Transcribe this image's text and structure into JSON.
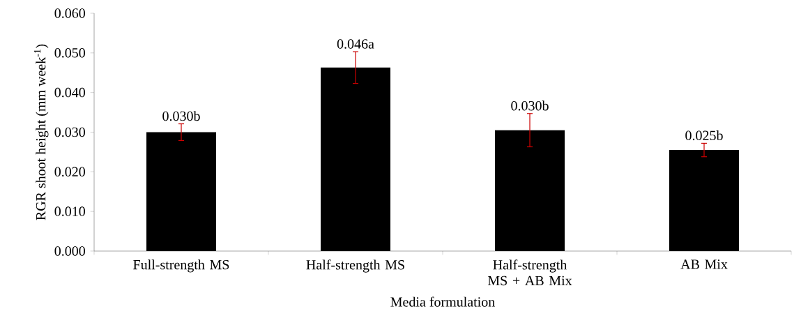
{
  "chart_data": {
    "type": "bar",
    "xlabel": "Media formulation",
    "ylabel": "RGR shoot height (mm week$^{-1}$)",
    "categories": [
      "Full-strength MS",
      "Half-strength MS",
      "Half-strength MS + AB Mix",
      "AB Mix"
    ],
    "values": [
      0.03,
      0.0463,
      0.0305,
      0.0255
    ],
    "errors": [
      0.0021,
      0.004,
      0.0042,
      0.0017
    ],
    "value_labels": [
      "0.030b",
      "0.046a",
      "0.030b",
      "0.025b"
    ],
    "color": "#000000",
    "ylim": [
      0,
      0.06
    ],
    "yticks": [
      {
        "value": 0,
        "label": "0.000"
      },
      {
        "value": 0.01,
        "label": "0.010"
      },
      {
        "value": 0.02,
        "label": "0.020"
      },
      {
        "value": 0.03,
        "label": "0.030"
      },
      {
        "value": 0.04,
        "label": "0.040"
      },
      {
        "value": 0.05,
        "label": "0.050"
      },
      {
        "value": 0.06,
        "label": "0.060"
      }
    ],
    "grid": false
  }
}
